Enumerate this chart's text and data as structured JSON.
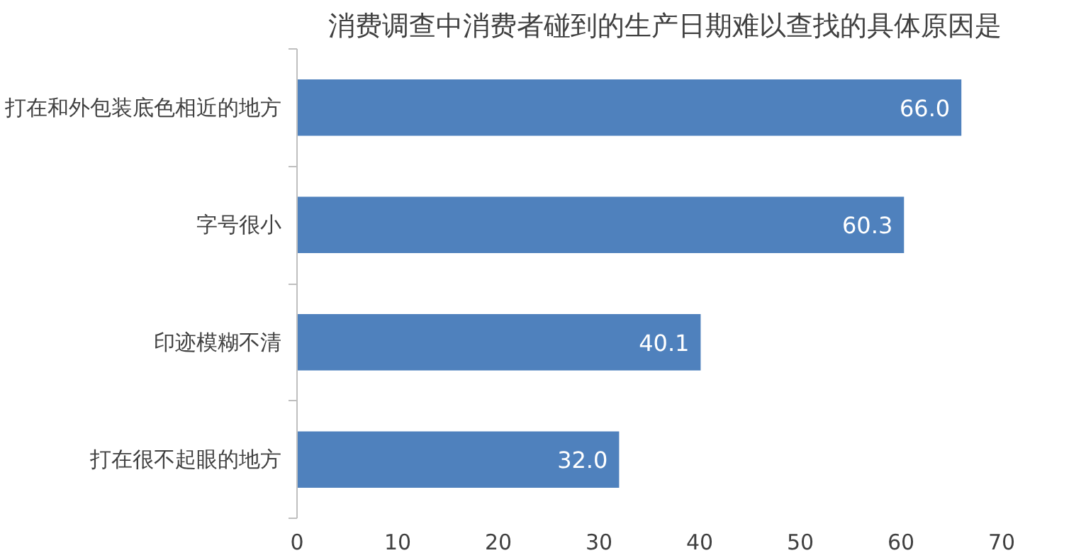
{
  "chart_data": {
    "type": "bar",
    "orientation": "horizontal",
    "title": "消费调查中消费者碰到的生产日期难以查找的具体原因是",
    "categories": [
      "打在和外包装底色相近的地方",
      "字号很小",
      "印迹模糊不清",
      "打在很不起眼的地方"
    ],
    "values": [
      66.0,
      60.3,
      40.1,
      32.0
    ],
    "value_labels": [
      "66.0",
      "60.3",
      "40.1",
      "32.0"
    ],
    "color": "#4f81bd",
    "xlim": [
      0,
      70
    ],
    "xticks": [
      0,
      10,
      20,
      30,
      40,
      50,
      60,
      70
    ],
    "grid": false
  }
}
